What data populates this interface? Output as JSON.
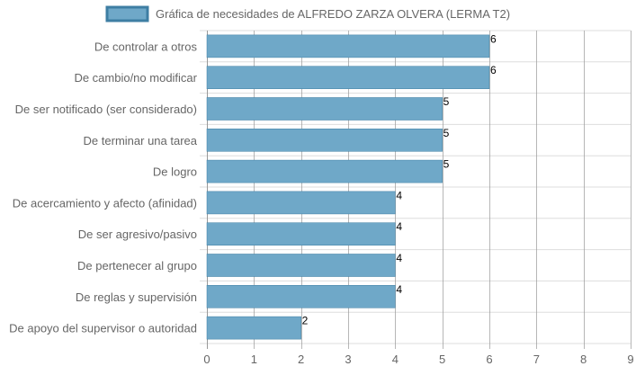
{
  "chart_data": {
    "type": "bar",
    "orientation": "horizontal",
    "legend": {
      "position": "top",
      "entries": [
        "Gráfica de necesidades de ALFREDO ZARZA OLVERA (LERMA T2)"
      ]
    },
    "series": [
      {
        "name": "Gráfica de necesidades de ALFREDO ZARZA OLVERA (LERMA T2)",
        "color": "#6fa8c8",
        "border_color": "#3e7ea3",
        "values": [
          6,
          6,
          5,
          5,
          5,
          4,
          4,
          4,
          4,
          2
        ]
      }
    ],
    "categories": [
      "De controlar a otros",
      "De cambio/no modificar",
      "De ser notificado (ser considerado)",
      "De terminar una tarea",
      "De logro",
      "De acercamiento y afecto (afinidad)",
      "De ser agresivo/pasivo",
      "De pertenecer al grupo",
      "De reglas y supervisión",
      "De apoyo del supervisor o autoridad"
    ],
    "data_labels": [
      "6",
      "6",
      "5",
      "5",
      "5",
      "4",
      "4",
      "4",
      "4",
      "2"
    ],
    "x_ticks": [
      "0",
      "1",
      "2",
      "3",
      "4",
      "5",
      "6",
      "7",
      "8",
      "9"
    ],
    "xlim": [
      0,
      9
    ],
    "grid": true,
    "colors": {
      "gridline": "#dddddd",
      "major_gridline": "#999999",
      "tick_label": "#666666"
    }
  }
}
